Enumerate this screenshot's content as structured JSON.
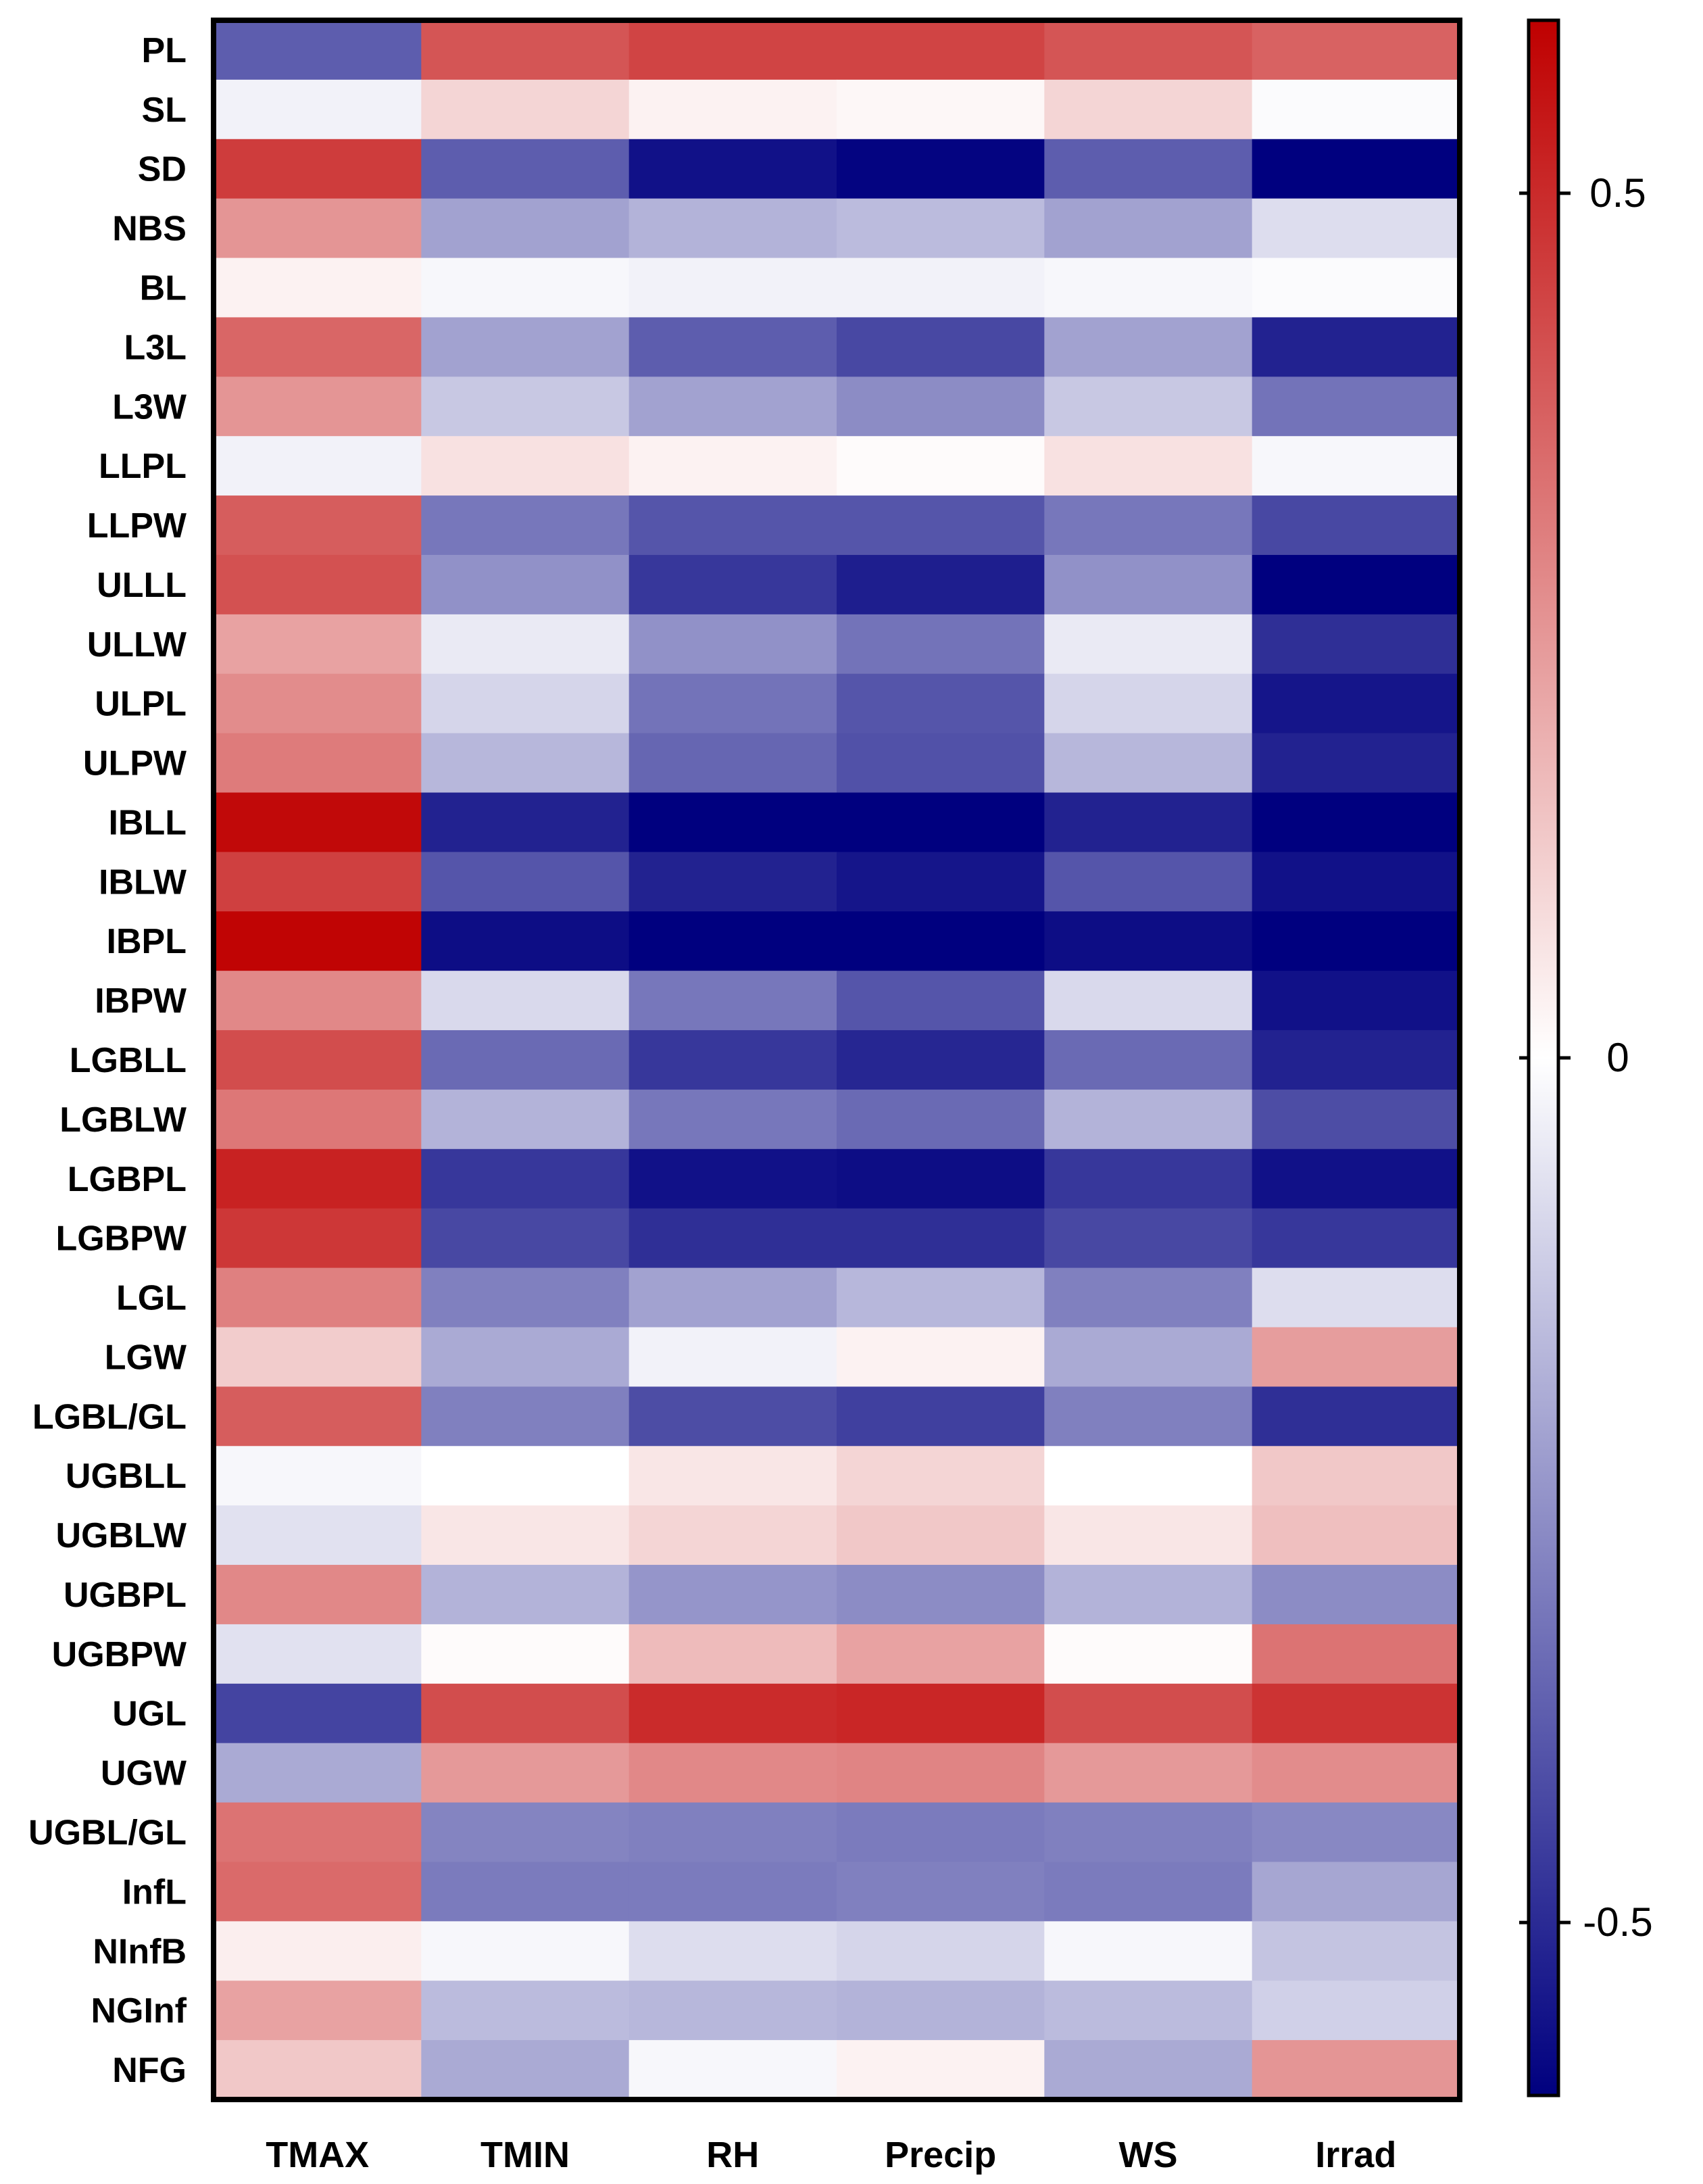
{
  "chart_data": {
    "type": "heatmap",
    "title": "",
    "xlabel": "",
    "ylabel": "",
    "columns": [
      "TMAX",
      "TMIN",
      "RH",
      "Precip",
      "WS",
      "Irrad"
    ],
    "rows": [
      "PL",
      "SL",
      "SD",
      "NBS",
      "BL",
      "L3L",
      "L3W",
      "LLPL",
      "LLPW",
      "ULLL",
      "ULLW",
      "ULPL",
      "ULPW",
      "IBLL",
      "IBLW",
      "IBPL",
      "IBPW",
      "LGBLL",
      "LGBLW",
      "LGBPL",
      "LGBPW",
      "LGL",
      "LGW",
      "LGBL/GL",
      "UGBLL",
      "UGBLW",
      "UGBPL",
      "UGBPW",
      "UGL",
      "UGW",
      "UGBL/GL",
      "InfL",
      "NInfB",
      "NGInf",
      "NFG"
    ],
    "values": [
      [
        -0.38,
        0.4,
        0.44,
        0.44,
        0.4,
        0.37
      ],
      [
        -0.03,
        0.1,
        0.03,
        0.02,
        0.1,
        -0.01
      ],
      [
        0.46,
        -0.38,
        -0.56,
        -0.59,
        -0.38,
        -0.62
      ],
      [
        0.25,
        -0.22,
        -0.18,
        -0.16,
        -0.22,
        -0.08
      ],
      [
        0.03,
        -0.02,
        -0.03,
        -0.03,
        -0.02,
        -0.01
      ],
      [
        0.36,
        -0.22,
        -0.38,
        -0.43,
        -0.22,
        -0.52
      ],
      [
        0.25,
        -0.13,
        -0.22,
        -0.27,
        -0.13,
        -0.33
      ],
      [
        -0.03,
        0.07,
        0.03,
        0.01,
        0.07,
        -0.02
      ],
      [
        0.38,
        -0.32,
        -0.4,
        -0.4,
        -0.32,
        -0.43
      ],
      [
        0.41,
        -0.26,
        -0.47,
        -0.53,
        -0.26,
        -0.62
      ],
      [
        0.22,
        -0.05,
        -0.26,
        -0.33,
        -0.05,
        -0.49
      ],
      [
        0.27,
        -0.1,
        -0.33,
        -0.4,
        -0.1,
        -0.55
      ],
      [
        0.31,
        -0.17,
        -0.36,
        -0.41,
        -0.17,
        -0.52
      ],
      [
        0.58,
        -0.52,
        -0.6,
        -0.62,
        -0.52,
        -0.62
      ],
      [
        0.45,
        -0.4,
        -0.52,
        -0.55,
        -0.4,
        -0.56
      ],
      [
        0.59,
        -0.57,
        -0.62,
        -0.62,
        -0.57,
        -0.6
      ],
      [
        0.28,
        -0.09,
        -0.32,
        -0.4,
        -0.09,
        -0.56
      ],
      [
        0.42,
        -0.35,
        -0.47,
        -0.51,
        -0.35,
        -0.52
      ],
      [
        0.32,
        -0.18,
        -0.32,
        -0.35,
        -0.18,
        -0.42
      ],
      [
        0.52,
        -0.47,
        -0.56,
        -0.57,
        -0.47,
        -0.56
      ],
      [
        0.47,
        -0.43,
        -0.49,
        -0.49,
        -0.43,
        -0.47
      ],
      [
        0.3,
        -0.3,
        -0.22,
        -0.17,
        -0.3,
        -0.08
      ],
      [
        0.12,
        -0.2,
        -0.03,
        0.03,
        -0.2,
        0.23
      ],
      [
        0.38,
        -0.3,
        -0.42,
        -0.45,
        -0.3,
        -0.49
      ],
      [
        -0.02,
        0.0,
        0.06,
        0.1,
        0.0,
        0.13
      ],
      [
        -0.07,
        0.06,
        0.1,
        0.13,
        0.06,
        0.15
      ],
      [
        0.28,
        -0.18,
        -0.25,
        -0.27,
        -0.18,
        -0.27
      ],
      [
        -0.07,
        0.01,
        0.16,
        0.22,
        0.01,
        0.33
      ],
      [
        -0.44,
        0.42,
        0.5,
        0.51,
        0.42,
        0.48
      ],
      [
        -0.2,
        0.24,
        0.28,
        0.29,
        0.24,
        0.27
      ],
      [
        0.33,
        -0.29,
        -0.3,
        -0.31,
        -0.3,
        -0.28
      ],
      [
        0.35,
        -0.31,
        -0.31,
        -0.3,
        -0.31,
        -0.21
      ],
      [
        0.04,
        -0.02,
        -0.08,
        -0.1,
        -0.02,
        -0.14
      ],
      [
        0.22,
        -0.16,
        -0.17,
        -0.18,
        -0.16,
        -0.11
      ],
      [
        0.13,
        -0.2,
        -0.02,
        0.03,
        -0.2,
        0.25
      ]
    ],
    "colorbar": {
      "min": -0.6,
      "max": 0.6,
      "ticks": [
        0.5,
        0,
        -0.5
      ],
      "tick_labels": [
        "0.5",
        "0",
        "-0.5"
      ],
      "colors": {
        "low": "#00007f",
        "mid": "#ffffff",
        "high": "#bf0000"
      }
    }
  }
}
